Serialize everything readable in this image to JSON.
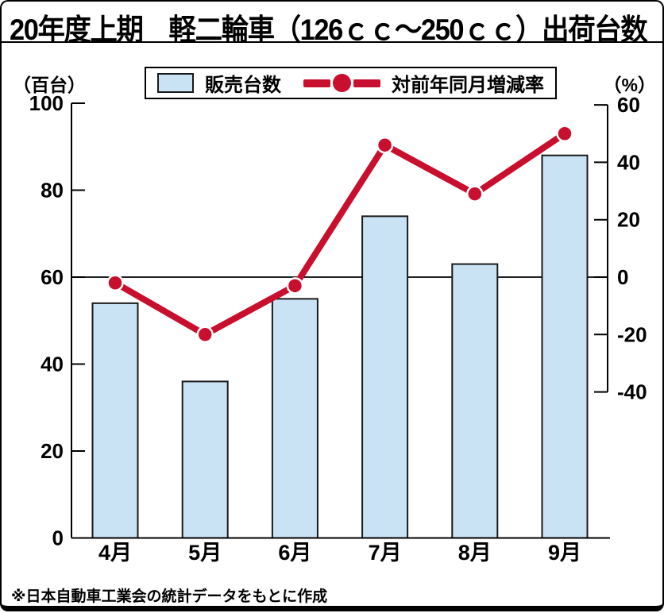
{
  "title": "20年度上期　軽二輪車（126ｃｃ～250ｃｃ）出荷台数",
  "footer": "※日本自動車工業会の統計データをもとに作成",
  "left_axis_unit": "（百台）",
  "right_axis_unit": "（%）",
  "legend": {
    "bar_label": "販売台数",
    "line_label": "対前年同月増減率"
  },
  "colors": {
    "bar_fill": "#c9e3f5",
    "bar_border": "#1a1a1a",
    "line_red": "#c8102e",
    "axis_black": "#000000",
    "dot_ring_white": "#ffffff"
  },
  "chart_data": {
    "type": "bar",
    "subtype": "bar+line combo, dual axis",
    "title": "20年度上期　軽二輪車（126ｃｃ～250ｃｃ）出荷台数",
    "categories": [
      "4月",
      "5月",
      "6月",
      "7月",
      "8月",
      "9月"
    ],
    "series": [
      {
        "name": "販売台数",
        "type": "bar",
        "axis": "left",
        "values": [
          54,
          36,
          55,
          74,
          63,
          88
        ]
      },
      {
        "name": "対前年同月増減率",
        "type": "line",
        "axis": "right",
        "values": [
          -2,
          -20,
          -3,
          46,
          29,
          50
        ]
      }
    ],
    "left_axis": {
      "label": "（百台）",
      "range": [
        0,
        100
      ],
      "ticks": [
        0,
        20,
        40,
        60,
        80,
        100
      ]
    },
    "right_axis": {
      "label": "（%）",
      "range": [
        -40,
        60
      ],
      "ticks": [
        -40,
        -20,
        0,
        20,
        40,
        60
      ]
    },
    "grid": "single horizontal line at right-axis 0%",
    "legend_position": "top",
    "source_note": "※日本自動車工業会の統計データをもとに作成"
  }
}
